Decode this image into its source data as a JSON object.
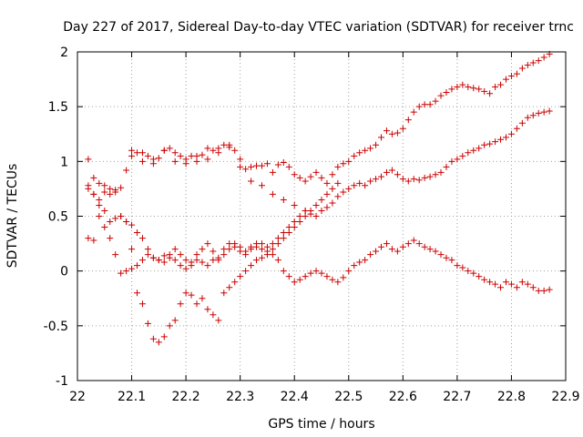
{
  "chart_data": {
    "type": "scatter",
    "title": "Day 227 of 2017, Sidereal Day-to-day VTEC variation (SDTVAR) for receiver trnc",
    "xlabel": "GPS time / hours",
    "ylabel": "SDTVAR / TECUs",
    "xlim": [
      22,
      22.9
    ],
    "ylim": [
      -1,
      2
    ],
    "xticks": [
      "22",
      "22.1",
      "22.2",
      "22.3",
      "22.4",
      "22.5",
      "22.6",
      "22.7",
      "22.8",
      "22.9"
    ],
    "yticks": [
      "-1",
      "-0.5",
      "0",
      "0.5",
      "1",
      "1.5",
      "2"
    ],
    "grid": true,
    "marker": "+",
    "color": "#cc0000",
    "series": [
      {
        "x": [
          22.02,
          22.03,
          22.04,
          22.05,
          22.06,
          22.07,
          22.08,
          22.09,
          22.1,
          22.11,
          22.12,
          22.13,
          22.14,
          22.15,
          22.16,
          22.17,
          22.18,
          22.19,
          22.2,
          22.21,
          22.22,
          22.23,
          22.24,
          22.25,
          22.26,
          22.27,
          22.28,
          22.29,
          22.3,
          22.31,
          22.32,
          22.33,
          22.34,
          22.35,
          22.36,
          22.37,
          22.38,
          22.39,
          22.4,
          22.41,
          22.42,
          22.43,
          22.44,
          22.45,
          22.46,
          22.47,
          22.48,
          22.49,
          22.5,
          22.51,
          22.52,
          22.53,
          22.54,
          22.55,
          22.56,
          22.57,
          22.58,
          22.59,
          22.6,
          22.61,
          22.62,
          22.63,
          22.64,
          22.65,
          22.66,
          22.67,
          22.68,
          22.69,
          22.7,
          22.71,
          22.72,
          22.73,
          22.74,
          22.75,
          22.76,
          22.77,
          22.78,
          22.79,
          22.8,
          22.81,
          22.82,
          22.83,
          22.84,
          22.85,
          22.86,
          22.87
        ],
        "y": [
          1.02,
          0.85,
          0.8,
          0.78,
          0.75,
          0.74,
          0.76,
          0.92,
          1.1,
          1.08,
          1.0,
          1.05,
          0.98,
          1.03,
          1.1,
          1.12,
          1.08,
          1.05,
          1.02,
          1.05,
          1.0,
          1.06,
          1.02,
          1.1,
          1.12,
          1.15,
          1.13,
          1.1,
          0.95,
          0.93,
          0.95,
          0.96,
          0.96,
          0.98,
          0.9,
          0.97,
          0.99,
          0.95,
          0.88,
          0.85,
          0.82,
          0.86,
          0.9,
          0.85,
          0.8,
          0.88,
          0.95,
          0.98,
          1.0,
          1.05,
          1.08,
          1.1,
          1.12,
          1.15,
          1.22,
          1.28,
          1.25,
          1.26,
          1.3,
          1.38,
          1.45,
          1.5,
          1.52,
          1.52,
          1.55,
          1.6,
          1.63,
          1.66,
          1.68,
          1.7,
          1.68,
          1.67,
          1.66,
          1.64,
          1.62,
          1.68,
          1.7,
          1.75,
          1.78,
          1.8,
          1.85,
          1.88,
          1.9,
          1.92,
          1.95,
          1.98
        ]
      },
      {
        "x": [
          22.02,
          22.03,
          22.04,
          22.05,
          22.06,
          22.07,
          22.08,
          22.09,
          22.1,
          22.11,
          22.12,
          22.13,
          22.14,
          22.15,
          22.16,
          22.17,
          22.18,
          22.19,
          22.2,
          22.21,
          22.22,
          22.23,
          22.24,
          22.25,
          22.26,
          22.27,
          22.28,
          22.29,
          22.3,
          22.31,
          22.32,
          22.33,
          22.34,
          22.35,
          22.36,
          22.37,
          22.38,
          22.39,
          22.4,
          22.41,
          22.42,
          22.43,
          22.44,
          22.45,
          22.46,
          22.47,
          22.48,
          22.49,
          22.5,
          22.51,
          22.52,
          22.53,
          22.54,
          22.55,
          22.56,
          22.57,
          22.58,
          22.59,
          22.6,
          22.61,
          22.62,
          22.63,
          22.64,
          22.65,
          22.66,
          22.67,
          22.68,
          22.69,
          22.7,
          22.71,
          22.72,
          22.73,
          22.74,
          22.75,
          22.76,
          22.77,
          22.78,
          22.79,
          22.8,
          22.81,
          22.82,
          22.83,
          22.84,
          22.85,
          22.86,
          22.87
        ],
        "y": [
          0.75,
          0.7,
          0.65,
          0.72,
          0.7,
          0.72,
          0.5,
          0.45,
          0.42,
          0.35,
          0.3,
          0.2,
          0.12,
          0.1,
          0.14,
          0.15,
          0.1,
          0.05,
          0.02,
          0.05,
          0.1,
          0.08,
          0.05,
          0.1,
          0.12,
          0.2,
          0.25,
          0.22,
          0.18,
          0.15,
          0.2,
          0.22,
          0.25,
          0.22,
          0.25,
          0.3,
          0.35,
          0.4,
          0.45,
          0.5,
          0.55,
          0.52,
          0.5,
          0.55,
          0.58,
          0.62,
          0.68,
          0.72,
          0.75,
          0.78,
          0.8,
          0.78,
          0.82,
          0.84,
          0.86,
          0.9,
          0.92,
          0.88,
          0.84,
          0.82,
          0.84,
          0.83,
          0.85,
          0.86,
          0.88,
          0.9,
          0.95,
          1.0,
          1.02,
          1.05,
          1.08,
          1.1,
          1.12,
          1.15,
          1.16,
          1.18,
          1.2,
          1.22,
          1.25,
          1.3,
          1.35,
          1.4,
          1.42,
          1.44,
          1.45,
          1.46
        ]
      },
      {
        "x": [
          22.02,
          22.03,
          22.04,
          22.05,
          22.06,
          22.07,
          22.08,
          22.09,
          22.1,
          22.11,
          22.12,
          22.13,
          22.14,
          22.15,
          22.16,
          22.17,
          22.18,
          22.19,
          22.2,
          22.21,
          22.22,
          22.23,
          22.24,
          22.25,
          22.26,
          22.27,
          22.28,
          22.29,
          22.3,
          22.31,
          22.32,
          22.33,
          22.34,
          22.35,
          22.36,
          22.37,
          22.38,
          22.39,
          22.4,
          22.41,
          22.42,
          22.43,
          22.44,
          22.45,
          22.46,
          22.47,
          22.48,
          22.49,
          22.5,
          22.51,
          22.52,
          22.53,
          22.54,
          22.55,
          22.56,
          22.57,
          22.58,
          22.59,
          22.6,
          22.61,
          22.62,
          22.63,
          22.64,
          22.65,
          22.66,
          22.67,
          22.68,
          22.69,
          22.7,
          22.71,
          22.72,
          22.73,
          22.74,
          22.75,
          22.76,
          22.77,
          22.78,
          22.79,
          22.8,
          22.81,
          22.82,
          22.83,
          22.84,
          22.85,
          22.86,
          22.87
        ],
        "y": [
          0.3,
          0.28,
          0.5,
          0.4,
          0.3,
          0.15,
          -0.02,
          0.0,
          0.02,
          0.05,
          0.1,
          0.15,
          0.12,
          0.1,
          0.08,
          0.12,
          0.2,
          0.15,
          0.1,
          0.08,
          0.15,
          0.2,
          0.25,
          0.18,
          0.1,
          0.15,
          0.2,
          0.25,
          0.22,
          0.18,
          0.22,
          0.25,
          0.2,
          0.18,
          0.15,
          0.1,
          0.0,
          -0.05,
          -0.1,
          -0.08,
          -0.05,
          -0.02,
          0.0,
          -0.02,
          -0.05,
          -0.08,
          -0.1,
          -0.06,
          0.0,
          0.05,
          0.08,
          0.1,
          0.15,
          0.18,
          0.22,
          0.25,
          0.2,
          0.18,
          0.22,
          0.25,
          0.28,
          0.25,
          0.22,
          0.2,
          0.18,
          0.15,
          0.12,
          0.1,
          0.05,
          0.03,
          0.0,
          -0.02,
          -0.05,
          -0.08,
          -0.1,
          -0.12,
          -0.15,
          -0.1,
          -0.12,
          -0.15,
          -0.1,
          -0.12,
          -0.15,
          -0.18,
          -0.18,
          -0.17
        ]
      },
      {
        "x": [
          22.02,
          22.03,
          22.04,
          22.05,
          22.06,
          22.07,
          22.08,
          22.09,
          22.1,
          22.11,
          22.12,
          22.13,
          22.14,
          22.15,
          22.16,
          22.17,
          22.18,
          22.19,
          22.2,
          22.21,
          22.22,
          22.23,
          22.24,
          22.25,
          22.26,
          22.27,
          22.28,
          22.29,
          22.3,
          22.31,
          22.32,
          22.33,
          22.34,
          22.35,
          22.36,
          22.37,
          22.38,
          22.39,
          22.4,
          22.41,
          22.42,
          22.43,
          22.44,
          22.45,
          22.46,
          22.47,
          22.48
        ],
        "y": [
          0.78,
          0.7,
          0.6,
          0.55,
          0.45,
          0.48,
          0.5,
          0.45,
          0.2,
          -0.2,
          -0.3,
          -0.48,
          -0.62,
          -0.65,
          -0.6,
          -0.5,
          -0.45,
          -0.3,
          -0.2,
          -0.22,
          -0.3,
          -0.25,
          -0.35,
          -0.4,
          -0.45,
          -0.2,
          -0.15,
          -0.1,
          -0.05,
          0.0,
          0.05,
          0.1,
          0.12,
          0.15,
          0.2,
          0.25,
          0.3,
          0.35,
          0.4,
          0.45,
          0.5,
          0.55,
          0.6,
          0.65,
          0.7,
          0.75,
          0.8
        ]
      },
      {
        "x": [
          22.1,
          22.12,
          22.14,
          22.16,
          22.18,
          22.2,
          22.22,
          22.24,
          22.26,
          22.28,
          22.3,
          22.32,
          22.34,
          22.36,
          22.38,
          22.4,
          22.42
        ],
        "y": [
          1.05,
          1.08,
          1.02,
          1.1,
          1.0,
          0.98,
          1.05,
          1.12,
          1.08,
          1.15,
          1.02,
          0.82,
          0.78,
          0.7,
          0.65,
          0.6,
          0.55
        ]
      }
    ]
  }
}
